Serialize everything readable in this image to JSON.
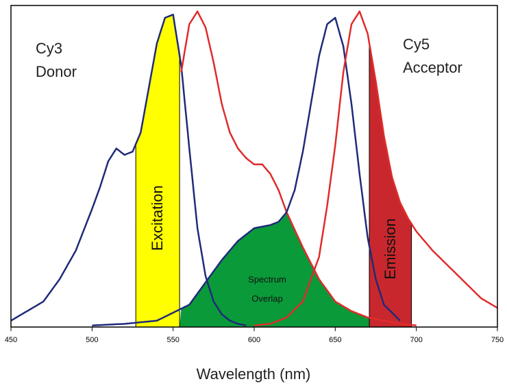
{
  "chart_data": {
    "type": "line",
    "xlabel": "Wavelength (nm)",
    "ylabel": "",
    "xlim": [
      450,
      750
    ],
    "ylim": [
      0,
      100
    ],
    "x_ticks": [
      "450",
      "500",
      "550",
      "600",
      "650",
      "700",
      "750"
    ],
    "grid": false,
    "colors": {
      "absorption": "#1f2a7a",
      "emission": "#e02b2b",
      "excitation_band": "#ffff00",
      "emission_band": "#c8282d",
      "overlap": "#0a9a3a"
    },
    "series": [
      {
        "name": "Cy3 Donor",
        "kind": "absorption",
        "x": [
          450,
          460,
          470,
          480,
          490,
          500,
          505,
          510,
          515,
          520,
          525,
          530,
          535,
          540,
          545,
          550,
          555,
          560,
          565,
          570,
          575,
          580,
          585,
          590,
          595
        ],
        "y": [
          2,
          5,
          8,
          15,
          24,
          37,
          44,
          52,
          56,
          54,
          55,
          61,
          75,
          89,
          97,
          98,
          82,
          56,
          31,
          16,
          8,
          4,
          2,
          1,
          0.5
        ]
      },
      {
        "name": "Cy3 Donor",
        "kind": "emission",
        "x": [
          555,
          560,
          565,
          570,
          575,
          580,
          585,
          590,
          595,
          600,
          605,
          610,
          615,
          620,
          630,
          640,
          650,
          660,
          670,
          680,
          690,
          700
        ],
        "y": [
          80,
          95,
          99,
          94,
          83,
          70,
          61,
          56,
          53,
          51,
          51,
          48,
          43,
          36,
          25,
          15,
          8,
          5,
          3,
          2,
          1,
          0.5
        ]
      },
      {
        "name": "Cy5 Acceptor",
        "kind": "absorption",
        "x": [
          500,
          520,
          540,
          560,
          570,
          580,
          590,
          600,
          610,
          615,
          620,
          625,
          630,
          635,
          640,
          645,
          650,
          655,
          660,
          665,
          670,
          675,
          680,
          690
        ],
        "y": [
          0.5,
          1,
          2,
          7,
          14,
          21,
          27,
          31,
          32,
          33,
          36,
          43,
          55,
          70,
          85,
          95,
          97,
          88,
          70,
          48,
          28,
          15,
          7,
          2
        ]
      },
      {
        "name": "Cy5 Acceptor",
        "kind": "emission",
        "x": [
          600,
          610,
          620,
          630,
          640,
          645,
          650,
          655,
          660,
          665,
          670,
          675,
          680,
          685,
          690,
          695,
          700,
          710,
          720,
          730,
          740,
          750
        ],
        "y": [
          0.5,
          1,
          3,
          8,
          22,
          38,
          57,
          80,
          95,
          99,
          92,
          77,
          60,
          47,
          39,
          34,
          30,
          24,
          19,
          14,
          9,
          6
        ]
      }
    ],
    "bands": {
      "excitation": {
        "label": "Excitation",
        "x_range": [
          527,
          554
        ]
      },
      "emission": {
        "label": "Emission",
        "x_range": [
          671,
          697
        ]
      },
      "overlap": {
        "label_line1": "Spectrum",
        "label_line2": "Overlap"
      }
    },
    "annotations": {
      "donor_line1": "Cy3",
      "donor_line2": "Donor",
      "acceptor_line1": "Cy5",
      "acceptor_line2": "Acceptor"
    }
  }
}
